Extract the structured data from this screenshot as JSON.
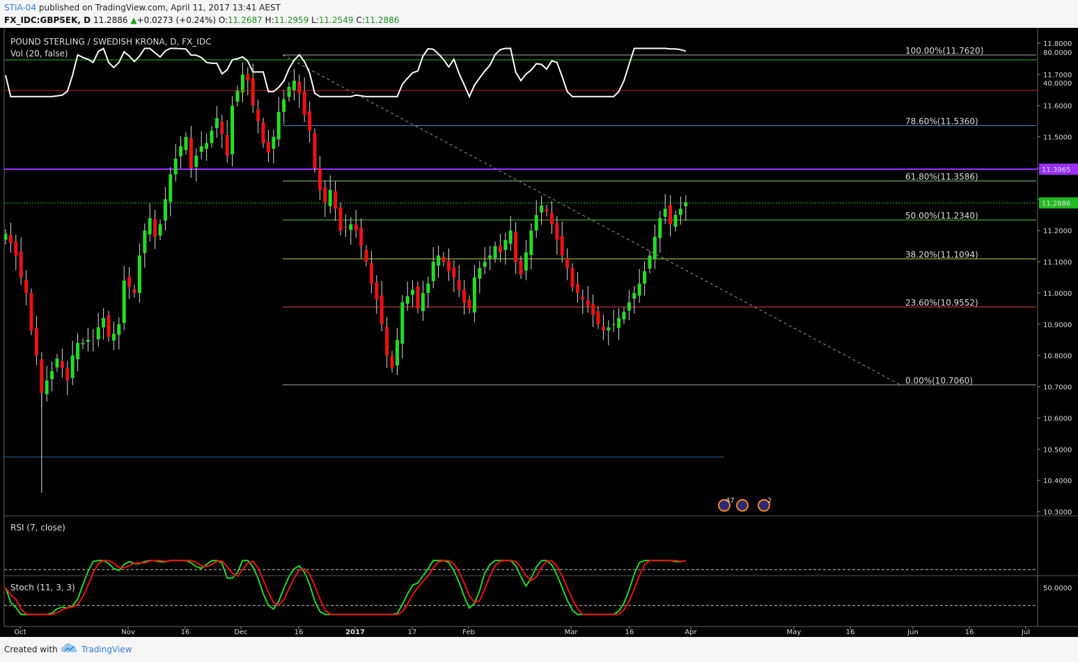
{
  "header": {
    "publisher": "STIA-04",
    "published_text": "published on TradingView.com, April 11, 2017 13:41 AEST",
    "symbol": "FX_IDC:GBPSEK, D",
    "last": "11.2886",
    "change": "+0.0273 (+0.24%)",
    "o_label": "O:",
    "o_value": "11.2687",
    "h_label": "H:",
    "h_value": "11.2959",
    "l_label": "L:",
    "l_value": "11.2549",
    "c_label": "C:",
    "c_value": "11.2886"
  },
  "footer": {
    "created_with": "Created with",
    "brand": "TradingView"
  },
  "colors": {
    "background": "#000000",
    "up": "#22dd22",
    "down": "#ee1111",
    "purple_line": "#9b30ff",
    "price_marker": "#22bb22",
    "rsi_line": "#ffffff",
    "stoch_k": "#22dd22",
    "stoch_d": "#ee1111"
  },
  "chart_data": [
    {
      "type": "candlestick",
      "title": "POUND STERLING / SWEDISH KRONA, D, FX_IDC",
      "subtitle": "Vol (20, false)",
      "ylim": [
        10.3,
        11.8
      ],
      "y_ticks": [
        "11.8000",
        "11.7000",
        "11.6000",
        "11.5000",
        "11.4000",
        "11.3000",
        "11.2000",
        "11.1000",
        "11.0000",
        "10.9000",
        "10.8000",
        "10.7000",
        "10.6000",
        "10.5000",
        "10.4000",
        "10.3000"
      ],
      "x_ticks": [
        "Oct",
        "Nov",
        "16",
        "Dec",
        "16",
        "2017",
        "17",
        "Feb",
        "Mar",
        "16",
        "Apr",
        "May",
        "16",
        "Jun",
        "16",
        "Jul"
      ],
      "x_ticks_bold": [
        "2017"
      ],
      "price_labels": {
        "horizontal_level": "11.3965",
        "last_price": "11.2886"
      },
      "fib_levels": [
        {
          "label": "100.00%(11.7620)",
          "value": 11.762,
          "color": "#aaaaaa"
        },
        {
          "label": "78.60%(11.5360)",
          "value": 11.536,
          "color": "#4a90c8"
        },
        {
          "label": "61.80%(11.3586)",
          "value": 11.3586,
          "color": "#88cc88"
        },
        {
          "label": "50.00%(11.2340)",
          "value": 11.234,
          "color": "#66cc44"
        },
        {
          "label": "38.20%(11.1094)",
          "value": 11.1094,
          "color": "#bbdd44"
        },
        {
          "label": "23.60%(10.9552)",
          "value": 10.9552,
          "color": "#ee4444"
        },
        {
          "label": "0.00%(10.7060)",
          "value": 10.706,
          "color": "#aaaaaa"
        }
      ],
      "horizontal_lines": [
        {
          "value": 11.3965,
          "color": "#9b30ff"
        },
        {
          "value": 10.475,
          "color": "#2f5f8f"
        }
      ],
      "events": [
        "47",
        "2"
      ],
      "close_series": [
        11.19,
        11.16,
        11.12,
        11.05,
        11.0,
        10.88,
        10.8,
        10.68,
        10.72,
        10.75,
        10.79,
        10.76,
        10.72,
        10.8,
        10.84,
        10.84,
        10.85,
        10.86,
        10.89,
        10.92,
        10.86,
        10.87,
        10.9,
        11.04,
        11.02,
        11.0,
        11.12,
        11.2,
        11.24,
        11.18,
        11.22,
        11.3,
        11.38,
        11.43,
        11.47,
        11.5,
        11.4,
        11.44,
        11.47,
        11.48,
        11.52,
        11.56,
        11.51,
        11.44,
        11.6,
        11.65,
        11.7,
        11.68,
        11.6,
        11.55,
        11.48,
        11.45,
        11.5,
        11.58,
        11.62,
        11.66,
        11.68,
        11.64,
        11.57,
        11.52,
        11.4,
        11.33,
        11.29,
        11.33,
        11.27,
        11.2,
        11.21,
        11.22,
        11.2,
        11.15,
        11.1,
        11.03,
        10.98,
        10.9,
        10.8,
        10.76,
        10.85,
        10.97,
        10.99,
        11.01,
        10.95,
        11.0,
        11.03,
        11.1,
        11.12,
        11.1,
        11.07,
        11.05,
        11.01,
        10.97,
        10.95,
        11.05,
        11.08,
        11.1,
        11.12,
        11.15,
        11.13,
        11.17,
        11.2,
        11.1,
        11.06,
        11.13,
        11.2,
        11.25,
        11.28,
        11.26,
        11.22,
        11.17,
        11.12,
        11.08,
        11.02,
        11.0,
        10.98,
        10.96,
        10.93,
        10.9,
        10.88,
        10.89,
        10.9,
        10.92,
        10.94,
        10.97,
        11.0,
        11.03,
        11.07,
        11.12,
        11.18,
        11.24,
        11.27,
        11.22,
        11.25,
        11.27,
        11.29
      ]
    },
    {
      "type": "line",
      "title": "RSI (7, close)",
      "ylim": [
        20,
        90
      ],
      "y_ticks": [
        "80.0000",
        "40.0000"
      ],
      "levels": [
        70,
        30
      ]
    },
    {
      "type": "line",
      "title": "Stoch (11, 3, 3)",
      "ylim": [
        0,
        100
      ],
      "y_ticks": [
        "50.0000"
      ],
      "levels": [
        80,
        20
      ]
    }
  ]
}
